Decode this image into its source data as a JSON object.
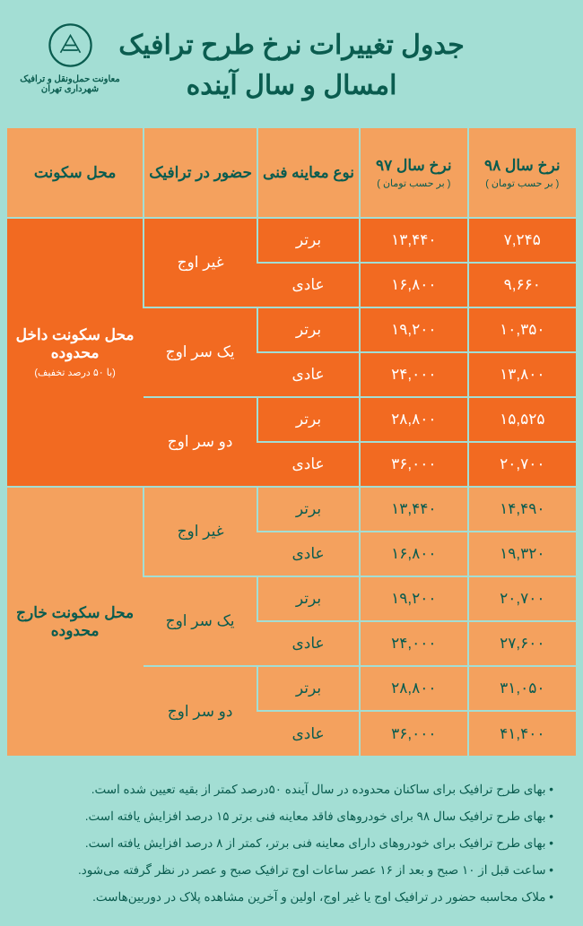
{
  "header": {
    "title_line1": "جدول تغییرات نرخ طرح ترافیک",
    "title_line2": "امسال و سال آینده",
    "org_line1": "معاونت حمل‌ونقل و ترافیک",
    "org_line2": "شهرداری تهران"
  },
  "columns": {
    "loc": "محل سکونت",
    "traffic": "حضور در ترافیک",
    "type": "نوع معاینه فنی",
    "rate97": "نرخ سال ۹۷",
    "rate97_sub": "( بر حسب تومان )",
    "rate98": "نرخ سال ۹۸",
    "rate98_sub": "( بر حسب تومان )"
  },
  "sections": [
    {
      "label": "محل سکونت داخل محدوده",
      "label_sub": "(با ۵۰ درصد تخفیف)",
      "class": "sec1",
      "label_class": "sec1-label",
      "groups": [
        {
          "traffic": "غیر اوج",
          "rows": [
            {
              "type": "برتر",
              "r97": "۱۳,۴۴۰",
              "r98": "۷,۲۴۵"
            },
            {
              "type": "عادی",
              "r97": "۱۶,۸۰۰",
              "r98": "۹,۶۶۰"
            }
          ]
        },
        {
          "traffic": "یک سر اوج",
          "rows": [
            {
              "type": "برتر",
              "r97": "۱۹,۲۰۰",
              "r98": "۱۰,۳۵۰"
            },
            {
              "type": "عادی",
              "r97": "۲۴,۰۰۰",
              "r98": "۱۳,۸۰۰"
            }
          ]
        },
        {
          "traffic": "دو سر اوج",
          "rows": [
            {
              "type": "برتر",
              "r97": "۲۸,۸۰۰",
              "r98": "۱۵,۵۲۵"
            },
            {
              "type": "عادی",
              "r97": "۳۶,۰۰۰",
              "r98": "۲۰,۷۰۰"
            }
          ]
        }
      ]
    },
    {
      "label": "محل سکونت خارج محدوده",
      "label_sub": "",
      "class": "sec2",
      "label_class": "sec2-label",
      "groups": [
        {
          "traffic": "غیر اوج",
          "rows": [
            {
              "type": "برتر",
              "r97": "۱۳,۴۴۰",
              "r98": "۱۴,۴۹۰"
            },
            {
              "type": "عادی",
              "r97": "۱۶,۸۰۰",
              "r98": "۱۹,۳۲۰"
            }
          ]
        },
        {
          "traffic": "یک سر اوج",
          "rows": [
            {
              "type": "برتر",
              "r97": "۱۹,۲۰۰",
              "r98": "۲۰,۷۰۰"
            },
            {
              "type": "عادی",
              "r97": "۲۴,۰۰۰",
              "r98": "۲۷,۶۰۰"
            }
          ]
        },
        {
          "traffic": "دو سر اوج",
          "rows": [
            {
              "type": "برتر",
              "r97": "۲۸,۸۰۰",
              "r98": "۳۱,۰۵۰"
            },
            {
              "type": "عادی",
              "r97": "۳۶,۰۰۰",
              "r98": "۴۱,۴۰۰"
            }
          ]
        }
      ]
    }
  ],
  "notes": [
    "بهای طرح ترافیک برای ساکنان محدوده در سال آینده ۵۰درصد کمتر از بقیه تعیین شده است.",
    "بهای طرح ترافیک سال ۹۸ برای خودروهای فاقد معاینه فنی برتر ۱۵ درصد افزایش یافته است.",
    "بهای طرح ترافیک برای خودروهای دارای معاینه فنی برتر، کمتر از ۸ درصد افزایش یافته است.",
    "ساعت قبل از ۱۰ صبح و بعد از ۱۶ عصر ساعات اوج ترافیک صبح و عصر در نظر گرفته می‌شود.",
    "ملاک محاسبه حضور در ترافیک اوج یا غیر اوج، اولین و آخرین مشاهده پلاک در دوربین‌هاست."
  ],
  "colors": {
    "page_bg": "#a3ded4",
    "header_bg": "#f4a15e",
    "sec1_bg": "#f26a21",
    "sec2_bg": "#f4a15e",
    "text_dark": "#0a5c4f",
    "text_light": "#ffffff"
  }
}
